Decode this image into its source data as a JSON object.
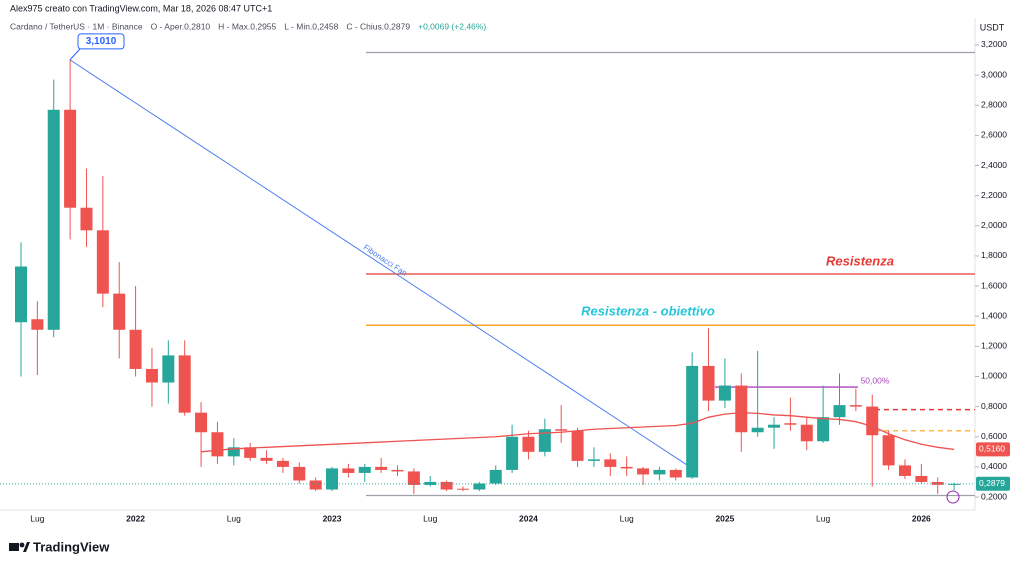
{
  "header": "Alex975 creato con TradingView.com, Mar 18, 2026 08:47 UTC+1",
  "legend": [
    "Cardano / TetherUS · 1M · Binance",
    "O - Aper.0,2810",
    "H - Max.0,2955",
    "L - Min.0,2458",
    "C - Chius.0,2879",
    "+0,0069 (+2,46%)"
  ],
  "logo": "TradingView",
  "chart_data": {
    "type": "candlestick",
    "y_unit": "USDT",
    "categories": [
      null,
      "Lug",
      null,
      null,
      null,
      null,
      null,
      "2022",
      null,
      null,
      null,
      null,
      null,
      "Lug",
      null,
      null,
      null,
      null,
      null,
      "2023",
      null,
      null,
      null,
      null,
      null,
      "Lug",
      null,
      null,
      null,
      null,
      null,
      "2024",
      null,
      null,
      null,
      null,
      null,
      "Lug",
      null,
      null,
      null,
      null,
      null,
      "2025",
      null,
      null,
      null,
      null,
      null,
      "Lug",
      null,
      null,
      null,
      null,
      null,
      "2026",
      null,
      null
    ],
    "open": [
      1.36,
      1.38,
      1.31,
      2.77,
      2.12,
      1.97,
      1.55,
      1.31,
      1.05,
      0.96,
      1.14,
      0.76,
      0.63,
      0.47,
      0.53,
      0.46,
      0.44,
      0.4,
      0.31,
      0.25,
      0.39,
      0.36,
      0.4,
      0.38,
      0.37,
      0.28,
      0.3,
      0.255,
      0.25,
      0.29,
      0.38,
      0.6,
      0.5,
      0.65,
      0.64,
      0.44,
      0.45,
      0.4,
      0.39,
      0.35,
      0.38,
      0.33,
      1.07,
      0.84,
      0.94,
      0.63,
      0.66,
      0.69,
      0.68,
      0.57,
      0.73,
      0.81,
      0.8,
      0.61,
      0.41,
      0.34,
      0.3,
      0.281
    ],
    "high": [
      1.89,
      1.5,
      2.97,
      3.101,
      2.38,
      2.33,
      1.76,
      1.6,
      1.19,
      1.24,
      1.24,
      0.83,
      0.7,
      0.59,
      0.56,
      0.51,
      0.46,
      0.43,
      0.33,
      0.4,
      0.42,
      0.42,
      0.46,
      0.41,
      0.39,
      0.34,
      0.31,
      0.27,
      0.3,
      0.41,
      0.68,
      0.64,
      0.72,
      0.81,
      0.66,
      0.53,
      0.49,
      0.47,
      0.4,
      0.4,
      0.39,
      1.16,
      1.32,
      1.12,
      1.02,
      1.17,
      0.73,
      0.86,
      0.73,
      0.94,
      1.02,
      0.92,
      0.88,
      0.64,
      0.45,
      0.42,
      0.33,
      0.2955
    ],
    "low": [
      1.0,
      1.01,
      1.26,
      1.91,
      1.86,
      1.46,
      1.12,
      1.0,
      0.8,
      0.82,
      0.74,
      0.4,
      0.42,
      0.41,
      0.44,
      0.42,
      0.36,
      0.29,
      0.24,
      0.24,
      0.33,
      0.3,
      0.36,
      0.34,
      0.22,
      0.27,
      0.24,
      0.24,
      0.24,
      0.28,
      0.36,
      0.45,
      0.47,
      0.56,
      0.4,
      0.4,
      0.34,
      0.34,
      0.28,
      0.31,
      0.31,
      0.32,
      0.77,
      0.79,
      0.5,
      0.6,
      0.52,
      0.64,
      0.51,
      0.56,
      0.68,
      0.77,
      0.27,
      0.38,
      0.32,
      0.29,
      0.22,
      0.2458
    ],
    "close": [
      1.73,
      1.31,
      2.77,
      2.12,
      1.97,
      1.55,
      1.31,
      1.05,
      0.96,
      1.14,
      0.76,
      0.63,
      0.47,
      0.53,
      0.46,
      0.44,
      0.4,
      0.31,
      0.25,
      0.39,
      0.36,
      0.4,
      0.38,
      0.37,
      0.28,
      0.3,
      0.25,
      0.25,
      0.29,
      0.38,
      0.6,
      0.5,
      0.65,
      0.64,
      0.44,
      0.45,
      0.4,
      0.39,
      0.35,
      0.38,
      0.33,
      1.07,
      0.84,
      0.94,
      0.63,
      0.66,
      0.68,
      0.68,
      0.57,
      0.73,
      0.81,
      0.8,
      0.61,
      0.41,
      0.34,
      0.3,
      0.281,
      0.2879
    ],
    "up_color": "#26a69a",
    "down_color": "#ef5350",
    "ma": {
      "color": "#ef5350",
      "values": [
        null,
        null,
        null,
        null,
        null,
        null,
        null,
        null,
        null,
        null,
        null,
        0.5,
        0.51,
        0.52,
        0.525,
        0.53,
        0.535,
        0.54,
        0.545,
        0.55,
        0.555,
        0.56,
        0.565,
        0.57,
        0.575,
        0.58,
        0.585,
        0.59,
        0.595,
        0.6,
        0.61,
        0.62,
        0.625,
        0.63,
        0.64,
        0.65,
        0.655,
        0.66,
        0.665,
        0.67,
        0.675,
        0.69,
        0.73,
        0.75,
        0.76,
        0.755,
        0.745,
        0.74,
        0.73,
        0.72,
        0.715,
        0.7,
        0.67,
        0.62,
        0.58,
        0.55,
        0.53,
        0.516
      ],
      "last": {
        "value": 0.516,
        "label": "0,5160"
      }
    },
    "last_price": {
      "value": 0.2879,
      "label": "0,2879"
    },
    "peak_label": {
      "value": 3.101,
      "label": "3,1010"
    },
    "fib_fan": {
      "label": "Fibonacci Fan",
      "from": 3.101,
      "to": 0.4,
      "color": "#4a7df0"
    },
    "levels": [
      {
        "value": 3.15,
        "color": "#9aa0a6"
      },
      {
        "value": 1.68,
        "color": "#e53935",
        "label": "Resistenza"
      },
      {
        "value": 1.34,
        "color": "#ff9800",
        "label": "Resistenza - obiettivo",
        "label_color": "#26c6da"
      },
      {
        "value": 0.93,
        "color": "#ab47bc",
        "label": "50,00%"
      },
      {
        "value": 0.78,
        "color": "#e53935",
        "dashed": true
      },
      {
        "value": 0.64,
        "color": "#ffb74d",
        "dashed": true
      },
      {
        "value": 0.21,
        "color": "#9aa0a6"
      }
    ],
    "ylim": [
      0.114,
      3.379
    ],
    "yticks": [
      {
        "value": 0.2,
        "label": "0,2000"
      },
      {
        "value": 0.4,
        "label": "0,4000"
      },
      {
        "value": 0.6,
        "label": "0,6000"
      },
      {
        "value": 0.8,
        "label": "0,8000"
      },
      {
        "value": 1.0,
        "label": "1,0000"
      },
      {
        "value": 1.2,
        "label": "1,2000"
      },
      {
        "value": 1.4,
        "label": "1,4000"
      },
      {
        "value": 1.6,
        "label": "1,6000"
      },
      {
        "value": 1.8,
        "label": "1,8000"
      },
      {
        "value": 2.0,
        "label": "2,0000"
      },
      {
        "value": 2.2,
        "label": "2,2000"
      },
      {
        "value": 2.4,
        "label": "2,4000"
      },
      {
        "value": 2.6,
        "label": "2,6000"
      },
      {
        "value": 2.8,
        "label": "2,8000"
      },
      {
        "value": 3.0,
        "label": "3,0000"
      },
      {
        "value": 3.2,
        "label": "3,2000"
      }
    ],
    "grid": false
  }
}
